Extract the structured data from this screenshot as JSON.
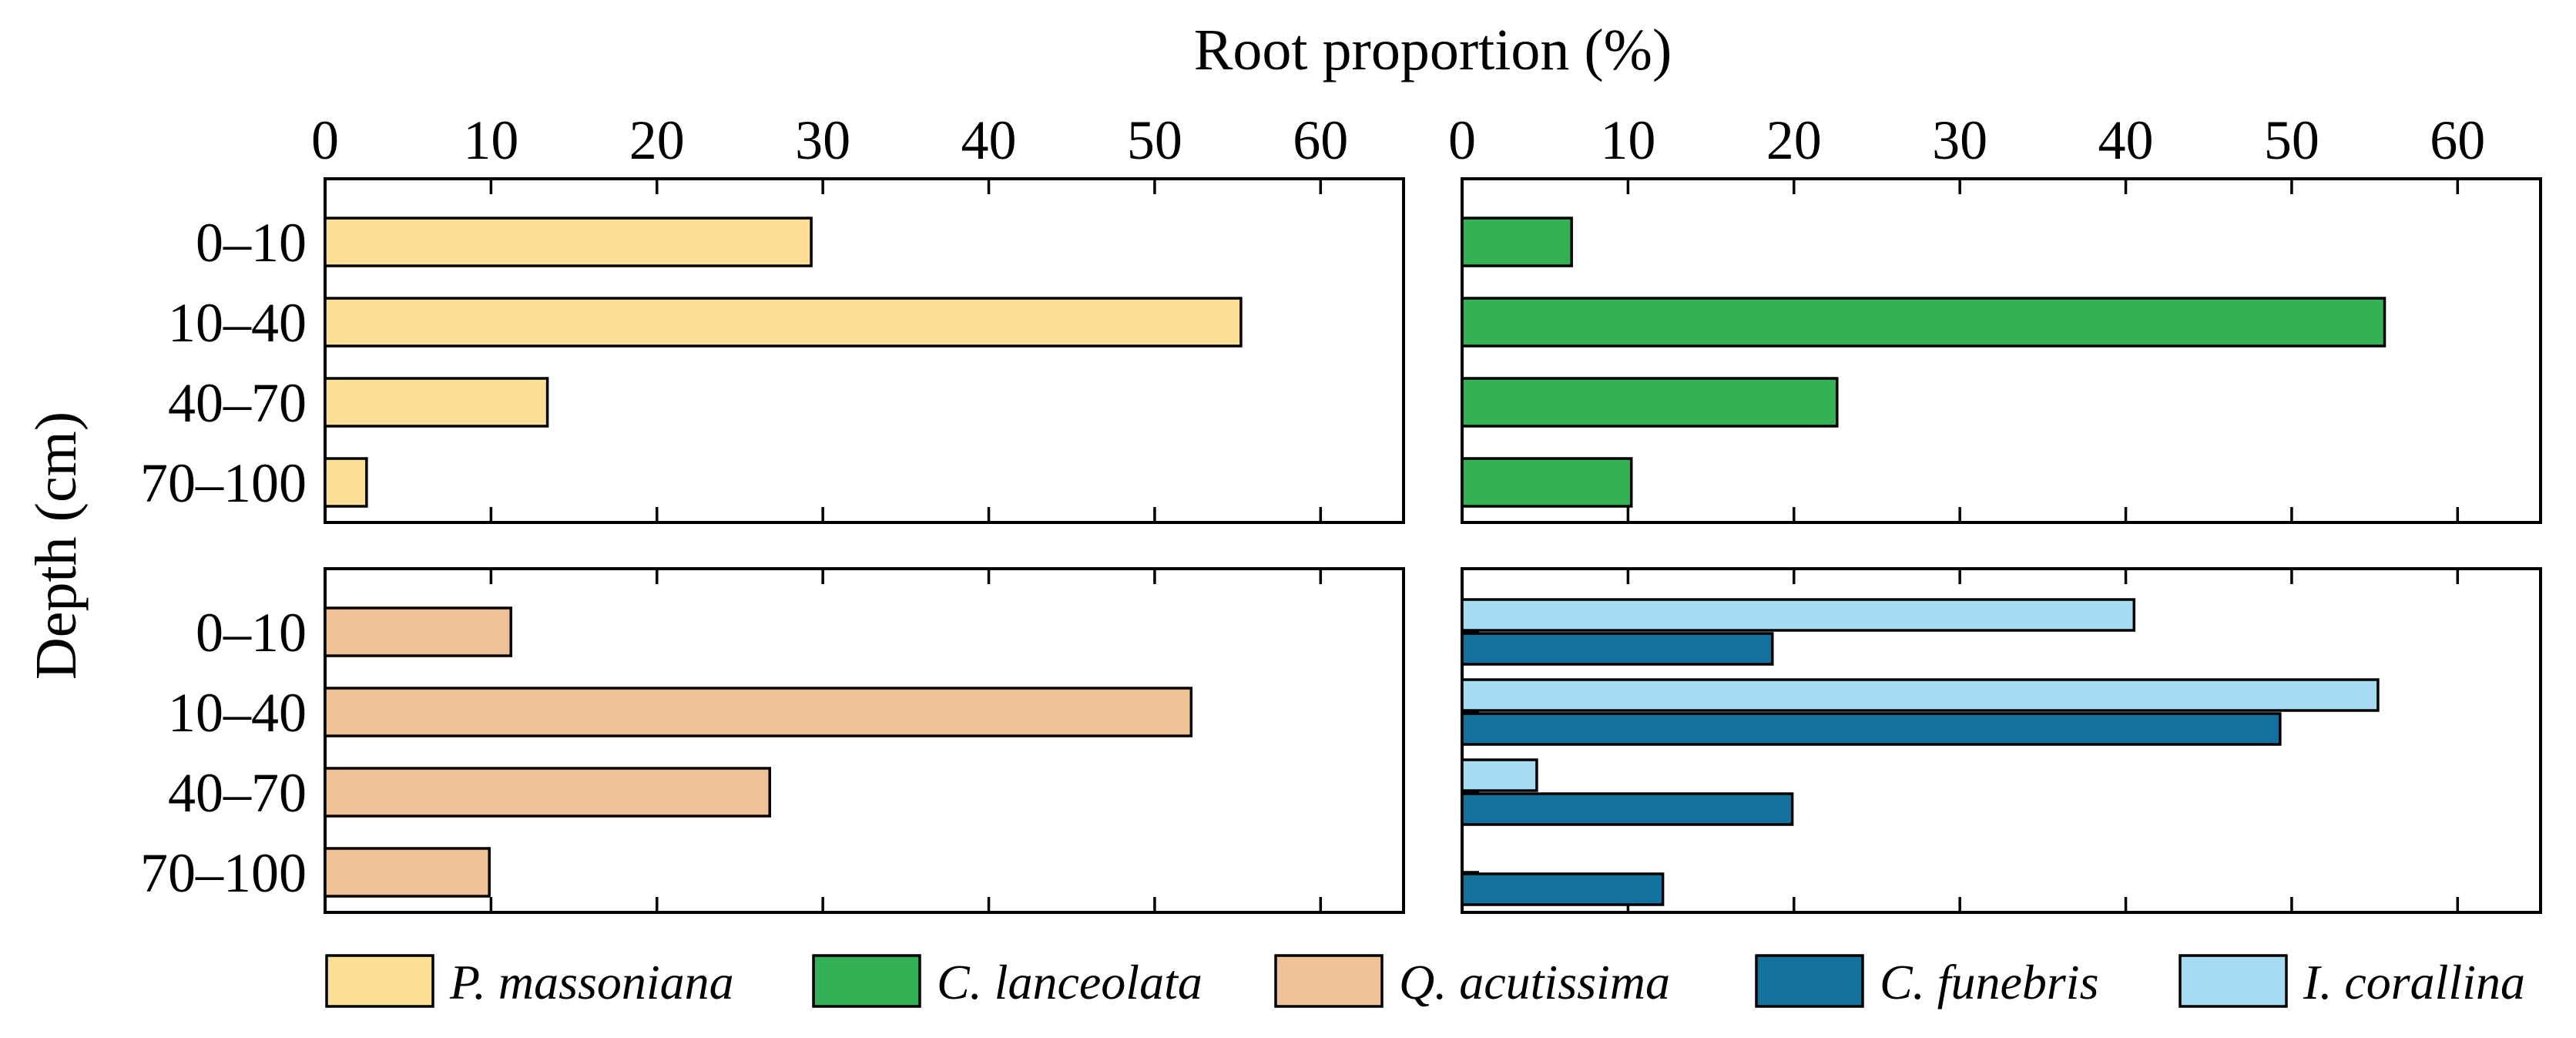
{
  "chart_data": {
    "type": "bar",
    "orientation": "horizontal",
    "title": "Root proportion (%)",
    "ylabel": "Depth (cm)",
    "xlim": [
      0,
      65
    ],
    "xticks": [
      0,
      10,
      20,
      30,
      40,
      50,
      60
    ],
    "categories": [
      "0–10",
      "10–40",
      "40–70",
      "70–100"
    ],
    "panels": [
      {
        "id": "top-left",
        "series": [
          {
            "name": "P. massoniana",
            "color": "#FCDF95",
            "values": [
              29.3,
              55.2,
              13.4,
              2.5
            ]
          }
        ]
      },
      {
        "id": "top-right",
        "series": [
          {
            "name": "C. lanceolata",
            "color": "#34B155",
            "values": [
              6.6,
              55.6,
              22.6,
              10.2
            ]
          }
        ]
      },
      {
        "id": "bottom-left",
        "series": [
          {
            "name": "Q. acutissima",
            "color": "#EEC295",
            "values": [
              11.2,
              52.2,
              26.8,
              9.9
            ]
          }
        ]
      },
      {
        "id": "bottom-right",
        "series": [
          {
            "name": "I. corallina",
            "color": "#A6DBF1",
            "values": [
              40.5,
              55.2,
              4.5,
              0
            ]
          },
          {
            "name": "C. funebris",
            "color": "#13719E",
            "values": [
              18.7,
              49.3,
              19.9,
              12.1
            ]
          }
        ]
      }
    ],
    "legend": [
      {
        "name": "P. massoniana",
        "color": "#FCDF95"
      },
      {
        "name": "C. lanceolata",
        "color": "#34B155"
      },
      {
        "name": "Q. acutissima",
        "color": "#EEC295"
      },
      {
        "name": "C. funebris",
        "color": "#13719E"
      },
      {
        "name": "I. corallina",
        "color": "#A6DBF1"
      }
    ],
    "legend_position": "bottom"
  }
}
